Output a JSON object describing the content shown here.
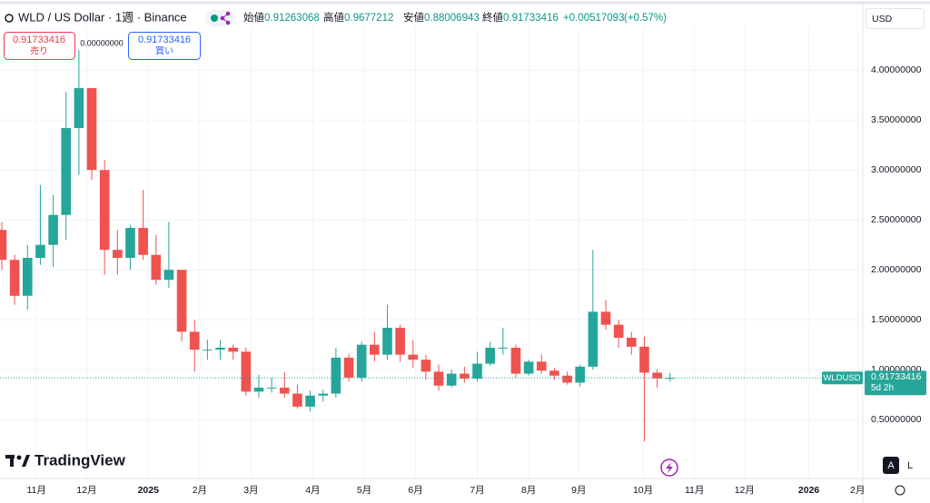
{
  "chart_data": {
    "type": "candlestick",
    "title": "WLD / US Dollar · 1週 · Binance",
    "symbol": "WLDUSD",
    "countdown": "5d 2h",
    "currency": "USD",
    "header": {
      "open_label": "始値",
      "high_label": "高値",
      "low_label": "安値",
      "close_label": "終値",
      "change": "+0.00517093",
      "change_pct": "(+0.57%)"
    },
    "trade": {
      "sell_label": "売り",
      "buy_label": "買い",
      "spread": "0.00000000"
    },
    "logo": "TradingView",
    "scale_buttons": [
      "A",
      "L"
    ],
    "up_color": "#26a69a",
    "down_color": "#ef5350",
    "open": [
      2.4,
      2.1,
      1.74,
      2.12,
      2.25,
      2.55,
      3.42,
      3.82,
      3.0,
      2.2,
      2.12,
      2.42,
      2.15,
      1.9,
      2.0,
      1.38,
      1.2,
      1.2,
      1.22,
      1.18,
      0.78,
      0.82,
      0.82,
      0.76,
      0.63,
      0.74,
      0.76,
      1.12,
      0.92,
      1.25,
      1.15,
      1.42,
      1.15,
      1.1,
      0.98,
      0.84,
      0.96,
      0.91,
      1.06,
      1.22,
      1.22,
      0.96,
      1.08,
      0.99,
      0.94,
      0.87,
      1.03,
      1.58,
      1.45,
      1.32,
      1.23,
      0.97,
      0.91263068
    ],
    "high": [
      2.48,
      2.15,
      2.25,
      2.85,
      2.75,
      3.78,
      4.2,
      3.82,
      3.1,
      2.4,
      2.45,
      2.8,
      2.35,
      2.48,
      2.0,
      1.5,
      1.3,
      1.3,
      1.25,
      1.22,
      0.95,
      0.92,
      0.98,
      0.85,
      0.79,
      0.8,
      1.22,
      1.16,
      1.28,
      1.38,
      1.65,
      1.45,
      1.3,
      1.15,
      1.05,
      1.0,
      1.03,
      1.18,
      1.28,
      1.42,
      1.25,
      1.1,
      1.15,
      1.02,
      0.98,
      1.05,
      2.2,
      1.7,
      1.5,
      1.38,
      1.33,
      1.0,
      0.9677212
    ],
    "low": [
      2.0,
      1.65,
      1.6,
      2.05,
      2.03,
      2.3,
      2.95,
      2.9,
      1.95,
      1.95,
      2.0,
      2.1,
      1.85,
      1.82,
      1.28,
      0.98,
      1.1,
      1.1,
      1.1,
      0.74,
      0.72,
      0.77,
      0.72,
      0.61,
      0.58,
      0.68,
      0.72,
      0.88,
      0.88,
      1.08,
      1.1,
      1.08,
      1.02,
      0.9,
      0.79,
      0.82,
      0.87,
      0.88,
      1.04,
      1.15,
      0.92,
      0.94,
      0.96,
      0.9,
      0.85,
      0.83,
      1.0,
      1.4,
      1.22,
      1.15,
      0.28,
      0.82,
      0.88006943
    ],
    "close": [
      2.1,
      1.74,
      2.12,
      2.25,
      2.55,
      3.42,
      3.82,
      3.0,
      2.2,
      2.12,
      2.42,
      2.15,
      1.9,
      2.0,
      1.38,
      1.2,
      1.2,
      1.22,
      1.18,
      0.78,
      0.82,
      0.82,
      0.76,
      0.63,
      0.74,
      0.76,
      1.12,
      0.92,
      1.25,
      1.15,
      1.42,
      1.15,
      1.1,
      0.98,
      0.84,
      0.96,
      0.91,
      1.06,
      1.22,
      1.22,
      0.96,
      1.08,
      0.99,
      0.94,
      0.87,
      1.03,
      1.58,
      1.45,
      1.32,
      1.23,
      0.97,
      0.912,
      0.91733416
    ],
    "ylim": [
      -0.09,
      4.43
    ],
    "yticks": [
      {
        "value": 0.5,
        "label": "0.50000000"
      },
      {
        "value": 1,
        "label": "1.00000000"
      },
      {
        "value": 1.5,
        "label": "1.50000000"
      },
      {
        "value": 2,
        "label": "2.00000000"
      },
      {
        "value": 2.5,
        "label": "2.50000000"
      },
      {
        "value": 3,
        "label": "3.00000000"
      },
      {
        "value": 3.5,
        "label": "3.50000000"
      },
      {
        "value": 4,
        "label": "4.00000000"
      }
    ],
    "xlim": [
      -0.14,
      67
    ],
    "xticks": [
      {
        "value": 2.7,
        "label": "11月"
      },
      {
        "value": 6.6,
        "label": "12月"
      },
      {
        "value": 11.4,
        "label": "2025"
      },
      {
        "value": 15.4,
        "label": "2月"
      },
      {
        "value": 19.4,
        "label": "3月"
      },
      {
        "value": 24.2,
        "label": "4月"
      },
      {
        "value": 28.2,
        "label": "5月"
      },
      {
        "value": 32.2,
        "label": "6月"
      },
      {
        "value": 37.0,
        "label": "7月"
      },
      {
        "value": 41.0,
        "label": "8月"
      },
      {
        "value": 44.9,
        "label": "9月"
      },
      {
        "value": 49.9,
        "label": "10月"
      },
      {
        "value": 53.9,
        "label": "11月"
      },
      {
        "value": 57.8,
        "label": "12月"
      },
      {
        "value": 62.8,
        "label": "2026"
      },
      {
        "value": 66.6,
        "label": "2月"
      }
    ],
    "grid": true
  }
}
